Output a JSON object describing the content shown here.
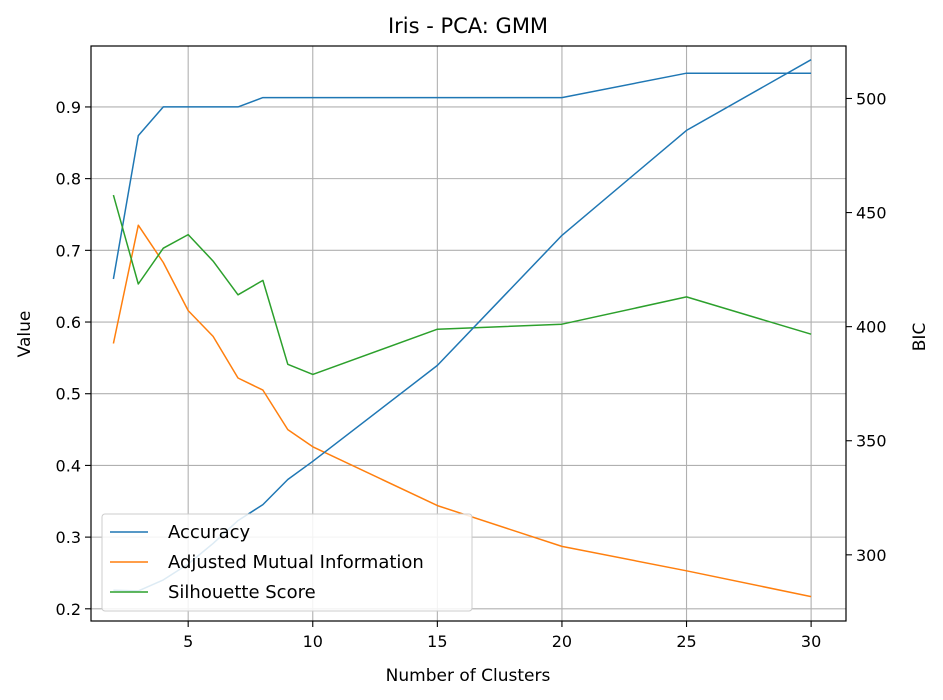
{
  "chart_data": {
    "type": "line",
    "title": "Iris - PCA: GMM",
    "xlabel": "Number of Clusters",
    "ylabel": "Value",
    "y2label": "BIC",
    "xlim": [
      1.1,
      31.4
    ],
    "ylim": [
      0.183,
      0.985
    ],
    "y2lim": [
      271,
      523
    ],
    "xticks": [
      5,
      10,
      15,
      20,
      25,
      30
    ],
    "yticks": [
      0.2,
      0.3,
      0.4,
      0.5,
      0.6,
      0.7,
      0.8,
      0.9
    ],
    "y2ticks": [
      300,
      350,
      400,
      450,
      500
    ],
    "grid": true,
    "legend_position": "lower-left",
    "series": [
      {
        "name": "Accuracy",
        "axis": "left",
        "color": "#1f77b4",
        "x": [
          2,
          3,
          4,
          5,
          6,
          7,
          8,
          10,
          15,
          20,
          25,
          30
        ],
        "values": [
          0.66,
          0.86,
          0.9,
          0.9,
          0.9,
          0.9,
          0.913,
          0.913,
          0.913,
          0.913,
          0.947,
          0.947
        ]
      },
      {
        "name": "Adjusted Mutual Information",
        "axis": "left",
        "color": "#ff7f0e",
        "x": [
          2,
          3,
          4,
          5,
          6,
          7,
          8,
          9,
          10,
          15,
          20,
          25,
          30
        ],
        "values": [
          0.57,
          0.735,
          0.683,
          0.616,
          0.58,
          0.522,
          0.505,
          0.45,
          0.426,
          0.344,
          0.287,
          0.253,
          0.217
        ]
      },
      {
        "name": "Silhouette Score",
        "axis": "left",
        "color": "#2ca02c",
        "x": [
          2,
          3,
          4,
          5,
          6,
          7,
          8,
          9,
          10,
          15,
          20,
          25,
          30
        ],
        "values": [
          0.777,
          0.653,
          0.703,
          0.722,
          0.685,
          0.638,
          0.658,
          0.541,
          0.527,
          0.59,
          0.597,
          0.635,
          0.583
        ]
      },
      {
        "name": "BIC",
        "axis": "right",
        "color": "#1f77b4",
        "x": [
          2,
          3,
          4,
          5,
          6,
          7,
          8,
          9,
          10,
          15,
          20,
          25,
          30
        ],
        "values": [
          284.5,
          284.2,
          289,
          296,
          305,
          315,
          322,
          333,
          341,
          383,
          440,
          486,
          517
        ]
      }
    ]
  }
}
